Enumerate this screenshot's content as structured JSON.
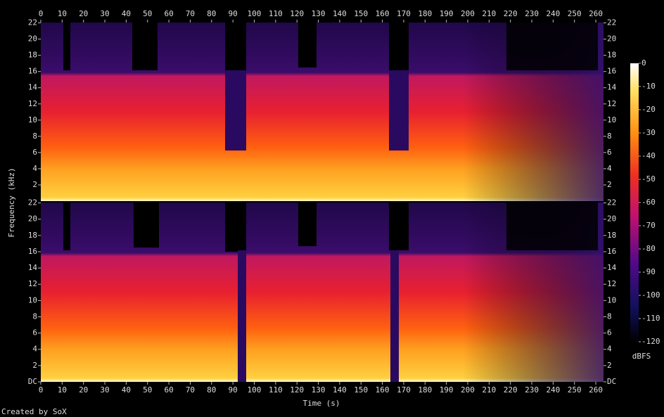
{
  "chart_data": {
    "type": "spectrogram",
    "xlabel": "Time (s)",
    "ylabel": "Frequency (kHz)",
    "xlim": [
      0,
      263.6
    ],
    "xticks": [
      0,
      10,
      20,
      30,
      40,
      50,
      60,
      70,
      80,
      90,
      100,
      110,
      120,
      130,
      140,
      150,
      160,
      170,
      180,
      190,
      200,
      210,
      220,
      230,
      240,
      250,
      260
    ],
    "panels": [
      {
        "ylim": [
          0,
          22.05
        ],
        "yticks": [
          2,
          4,
          6,
          8,
          10,
          12,
          14,
          16,
          18,
          20,
          22
        ]
      },
      {
        "ylim": [
          0,
          22.05
        ],
        "yticks": [
          {
            "value": 0,
            "label": "DC"
          },
          2,
          4,
          6,
          8,
          10,
          12,
          14,
          16,
          18,
          20,
          22
        ]
      }
    ],
    "colorbar": {
      "label": "dBFS",
      "lim": [
        -120,
        0
      ],
      "ticks": [
        0,
        -10,
        -20,
        -30,
        -40,
        -50,
        -60,
        -70,
        -80,
        -90,
        -100,
        -110,
        -120
      ]
    },
    "credit": "Created by SoX"
  }
}
